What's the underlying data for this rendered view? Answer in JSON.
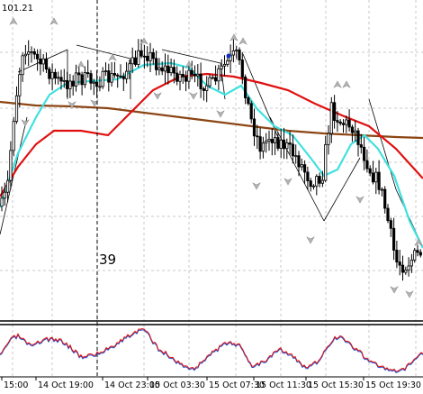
{
  "price_label": "101.21",
  "window_label": "39",
  "time_labels": [
    "15:00",
    "14 Oct 19:00",
    "14 Oct 23:00",
    "15 Oct 03:30",
    "15 Oct 07:30",
    "15 Oct 11:30",
    "15 Oct 15:30",
    "15 Oct 19:30"
  ],
  "colors": {
    "background": "#ffffff",
    "grid": "#c8c8c8",
    "candle": "#000000",
    "ma_fast": "#40e0e0",
    "ma_mid": "#e01010",
    "ma_slow": "#8b4513",
    "fractal": "#b4b4b4",
    "separator": "#000000",
    "osc_red": "#e01010",
    "osc_blue": "#2050d0"
  },
  "chart_data": {
    "type": "candlestick",
    "x_labels": [
      "15:00",
      "14 Oct 19:00",
      "14 Oct 23:00",
      "15 Oct 03:30",
      "15 Oct 07:30",
      "15 Oct 11:30",
      "15 Oct 15:30",
      "15 Oct 19:30"
    ],
    "price_tick": "101.21",
    "annotation": "39",
    "series": [
      {
        "kind": "moving-average",
        "color": "cyan"
      },
      {
        "kind": "moving-average",
        "color": "red"
      },
      {
        "kind": "moving-average",
        "color": "brown"
      },
      {
        "kind": "oscillator",
        "color": "red/blue"
      }
    ],
    "grid": true
  }
}
